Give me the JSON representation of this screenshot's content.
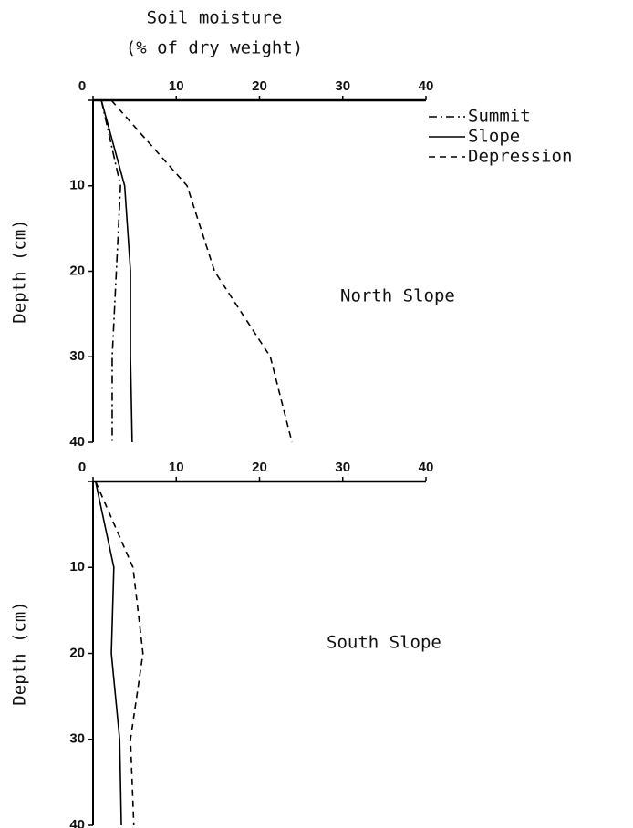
{
  "chart_data": [
    {
      "type": "line",
      "x_label": [
        "Soil moisture",
        "(% of dry weight)"
      ],
      "ylabel": "Depth (cm)",
      "annotation": "North Slope",
      "y": [
        0,
        10,
        20,
        30,
        40
      ],
      "y_inverted": true,
      "xlim": [
        0,
        40
      ],
      "xticks": [
        0,
        10,
        20,
        30,
        40
      ],
      "ylim": [
        0,
        40
      ],
      "yticks": [
        0,
        10,
        20,
        30,
        40
      ],
      "legend": "upper right",
      "series": [
        {
          "name": "Summit",
          "color": "#000000",
          "dash": "dashdot",
          "values": [
            1,
            3.3,
            2.8,
            2.3,
            2.3
          ]
        },
        {
          "name": "Slope",
          "color": "#000000",
          "dash": "solid",
          "values": [
            1,
            3.8,
            4.5,
            4.5,
            4.7
          ]
        },
        {
          "name": "Depression",
          "color": "#000000",
          "dash": "dashed",
          "values": [
            2.2,
            11.3,
            14.6,
            21.3,
            23.9
          ]
        }
      ]
    },
    {
      "type": "line",
      "ylabel": "Depth (cm)",
      "annotation": "South Slope",
      "y": [
        0,
        10,
        20,
        30,
        40
      ],
      "y_inverted": true,
      "xlim": [
        0,
        40
      ],
      "xticks": [
        0,
        10,
        20,
        30,
        40
      ],
      "ylim": [
        0,
        40
      ],
      "yticks": [
        0,
        10,
        20,
        30,
        40
      ],
      "series": [
        {
          "color": "#000000",
          "dash": "solid",
          "values": [
            0.3,
            2.5,
            2.2,
            3.2,
            3.4
          ]
        },
        {
          "color": "#000000",
          "dash": "dashed",
          "values": [
            0.3,
            4.8,
            6,
            4.5,
            4.9
          ]
        }
      ]
    }
  ]
}
